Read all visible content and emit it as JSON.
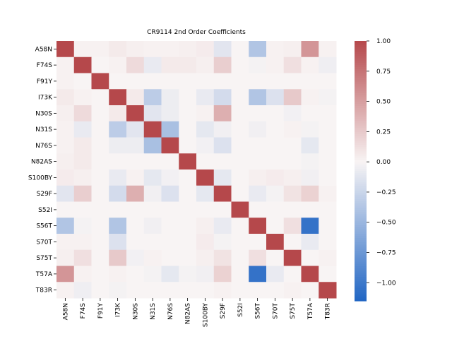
{
  "chart_data": {
    "type": "heatmap",
    "title": "CR9114 2nd Order Coefficients",
    "xlabel": "",
    "ylabel": "",
    "row_labels": [
      "A58N",
      "F74S",
      "F91Y",
      "I73K",
      "N30S",
      "N31S",
      "N76S",
      "N82AS",
      "S100BY",
      "S29F",
      "S52I",
      "S56T",
      "S70T",
      "S75T",
      "T57A",
      "T83R"
    ],
    "col_labels": [
      "A58N",
      "F74S",
      "F91Y",
      "I73K",
      "N30S",
      "N31S",
      "N76S",
      "N82AS",
      "S100BY",
      "S29F",
      "S52I",
      "S56T",
      "S70T",
      "S75T",
      "T57A",
      "T83R"
    ],
    "values": [
      [
        1.0,
        0.02,
        0.02,
        0.06,
        0.03,
        0.02,
        0.02,
        0.03,
        0.05,
        -0.12,
        0.0,
        -0.38,
        0.02,
        0.03,
        0.55,
        0.02
      ],
      [
        0.02,
        1.0,
        0.0,
        0.02,
        0.15,
        -0.08,
        0.06,
        0.06,
        0.03,
        0.22,
        0.0,
        -0.02,
        0.02,
        0.12,
        0.02,
        -0.05
      ],
      [
        0.02,
        0.0,
        1.0,
        0.0,
        0.0,
        0.0,
        0.0,
        0.0,
        0.0,
        0.0,
        0.0,
        0.0,
        0.0,
        0.0,
        0.0,
        0.0
      ],
      [
        0.06,
        0.02,
        0.0,
        1.0,
        0.06,
        -0.32,
        -0.06,
        0.0,
        -0.08,
        -0.2,
        0.0,
        -0.38,
        -0.15,
        0.25,
        0.02,
        -0.02
      ],
      [
        0.03,
        0.15,
        0.0,
        0.06,
        1.0,
        -0.12,
        -0.06,
        0.0,
        0.02,
        0.4,
        0.0,
        0.0,
        0.0,
        -0.03,
        0.0,
        0.0
      ],
      [
        0.02,
        -0.08,
        0.0,
        -0.32,
        -0.12,
        1.0,
        -0.42,
        0.0,
        -0.1,
        -0.04,
        0.0,
        -0.04,
        0.0,
        0.02,
        -0.02,
        0.0
      ],
      [
        0.02,
        0.06,
        0.0,
        -0.06,
        -0.06,
        -0.42,
        1.0,
        0.0,
        -0.03,
        -0.15,
        0.0,
        0.0,
        0.0,
        0.0,
        -0.1,
        0.0
      ],
      [
        0.03,
        0.06,
        0.0,
        0.0,
        0.0,
        0.0,
        0.0,
        1.0,
        0.0,
        0.0,
        0.0,
        0.0,
        0.0,
        0.0,
        -0.02,
        0.0
      ],
      [
        0.05,
        0.03,
        0.0,
        -0.08,
        0.02,
        -0.1,
        -0.03,
        0.0,
        1.0,
        -0.1,
        0.0,
        0.03,
        0.05,
        0.03,
        -0.04,
        0.0
      ],
      [
        -0.12,
        0.22,
        0.0,
        -0.2,
        0.4,
        -0.04,
        -0.15,
        0.0,
        -0.1,
        1.0,
        0.0,
        -0.08,
        -0.02,
        0.1,
        0.2,
        0.02
      ],
      [
        0.0,
        0.0,
        0.0,
        0.0,
        0.0,
        0.0,
        0.0,
        0.0,
        0.0,
        0.0,
        1.0,
        0.0,
        0.0,
        0.0,
        0.0,
        0.0
      ],
      [
        -0.38,
        -0.02,
        0.0,
        -0.38,
        0.0,
        -0.04,
        0.0,
        0.0,
        0.03,
        -0.08,
        0.0,
        1.0,
        0.0,
        0.12,
        -1.05,
        0.0
      ],
      [
        0.02,
        0.02,
        0.0,
        -0.15,
        0.0,
        0.0,
        0.0,
        0.0,
        0.05,
        -0.02,
        0.0,
        0.0,
        1.0,
        0.0,
        -0.08,
        0.0
      ],
      [
        0.03,
        0.12,
        0.0,
        0.25,
        -0.03,
        0.02,
        0.0,
        0.0,
        0.03,
        0.1,
        0.0,
        0.12,
        0.0,
        1.0,
        0.0,
        0.02
      ],
      [
        0.55,
        0.02,
        0.0,
        0.02,
        0.0,
        -0.02,
        -0.1,
        -0.02,
        -0.04,
        0.2,
        0.0,
        -1.05,
        -0.08,
        0.0,
        1.0,
        0.0
      ],
      [
        0.02,
        -0.05,
        0.0,
        -0.02,
        0.0,
        0.0,
        0.0,
        0.0,
        0.0,
        0.02,
        0.0,
        0.0,
        0.0,
        0.02,
        0.0,
        1.0
      ]
    ],
    "colorbar": {
      "min": -1.15,
      "max": 1.0,
      "ticks": [
        1.0,
        0.75,
        0.5,
        0.25,
        0.0,
        -0.25,
        -0.5,
        -0.75,
        -1.0
      ],
      "tick_labels": [
        "1.00",
        "0.75",
        "0.50",
        "0.25",
        "0.00",
        "−0.25",
        "−0.50",
        "−0.75",
        "−1.00"
      ]
    },
    "colors": {
      "negative": "#2166c4",
      "neutral": "#f8f4f4",
      "positive": "#b5484b"
    },
    "grid": false
  }
}
